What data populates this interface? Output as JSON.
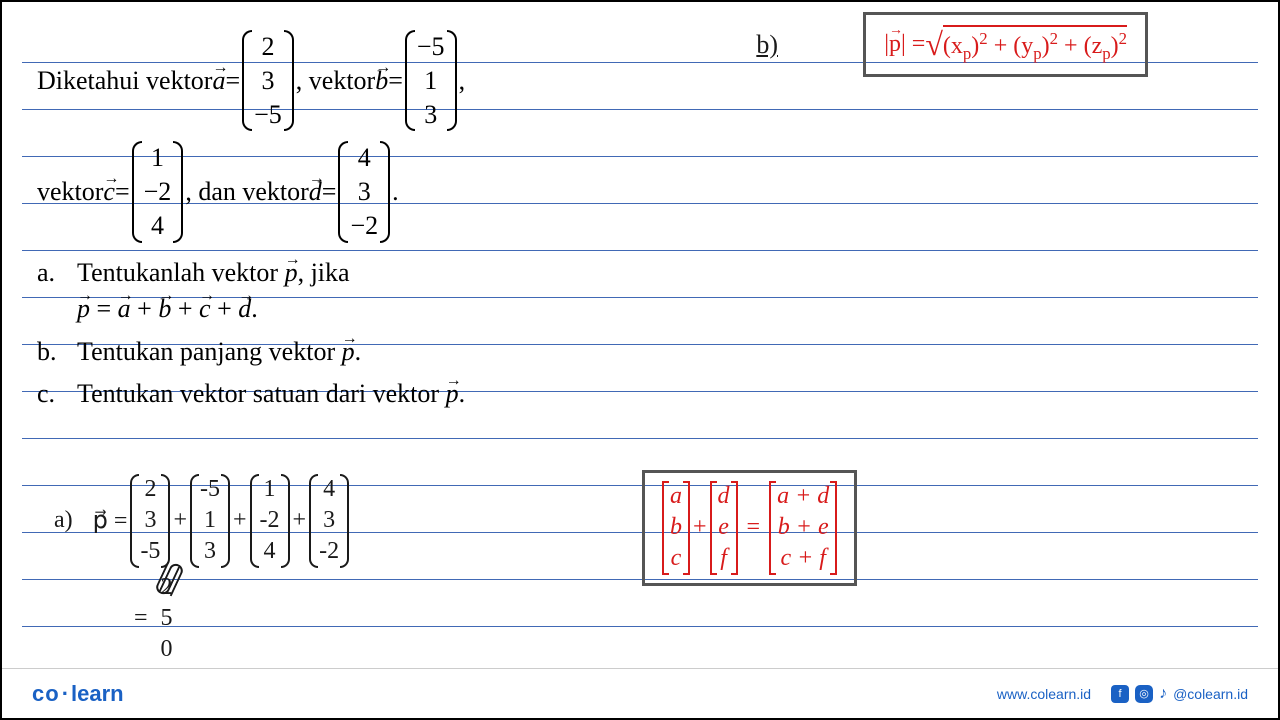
{
  "colors": {
    "rule_line": "#4169b5",
    "text_black": "#000000",
    "formula_red": "#d81b1b",
    "box_border": "#555555",
    "brand_blue": "#1a61c4",
    "background": "#ffffff"
  },
  "rule_positions": [
    60,
    107,
    154,
    201,
    248,
    295,
    342,
    389,
    436,
    483,
    530,
    577,
    624
  ],
  "problem": {
    "intro_1a": "Diketahui vektor ",
    "intro_1b": ", vektor ",
    "intro_1c": ",",
    "intro_2a": "vektor ",
    "intro_2b": ", dan vektor ",
    "intro_2c": ".",
    "vec_a": "a",
    "vec_b": "b",
    "vec_c": "c",
    "vec_d": "d",
    "vec_p": "p",
    "eq": " = ",
    "matrix_a": [
      "2",
      "3",
      "−5"
    ],
    "matrix_b": [
      "−5",
      "1",
      "3"
    ],
    "matrix_c": [
      "1",
      "−2",
      "4"
    ],
    "matrix_d": [
      "4",
      "3",
      "−2"
    ]
  },
  "questions": {
    "a_label": "a.",
    "a_text1": "Tentukanlah vektor ",
    "a_text2": ", jika",
    "a_eq": " = a⃗ + b⃗ + c⃗ + d⃗.",
    "b_label": "b.",
    "b_text": "Tentukan panjang vektor ",
    "b_text2": ".",
    "c_label": "c.",
    "c_text": "Tentukan vektor satuan dari vektor ",
    "c_text2": "."
  },
  "work_a": {
    "label": "a)",
    "p_eq": "p⃗ =",
    "m1": [
      "2",
      "3",
      "-5"
    ],
    "m2": [
      "-5",
      "1",
      "3"
    ],
    "m3": [
      "1",
      "-2",
      "4"
    ],
    "m4": [
      "4",
      "3",
      "-2"
    ],
    "plus": "+",
    "equals": "=",
    "result": [
      "2",
      "5",
      "0"
    ]
  },
  "label_b": "b)",
  "formula1": {
    "lhs": "|p⃗| = ",
    "sqrt": "√",
    "term1_base": "x",
    "term1_sub": "p",
    "term2_base": "y",
    "term2_sub": "p",
    "term3_base": "z",
    "term3_sub": "p",
    "sq": "2",
    "plus": " + "
  },
  "formula2": {
    "col1": [
      "a",
      "b",
      "c"
    ],
    "plus": "+",
    "col2": [
      "d",
      "e",
      "f"
    ],
    "eq": "=",
    "col3": [
      "a + d",
      "b + e",
      "c + f"
    ]
  },
  "footer": {
    "logo": "co learn",
    "url": "www.colearn.id",
    "handle": "@colearn.id"
  }
}
